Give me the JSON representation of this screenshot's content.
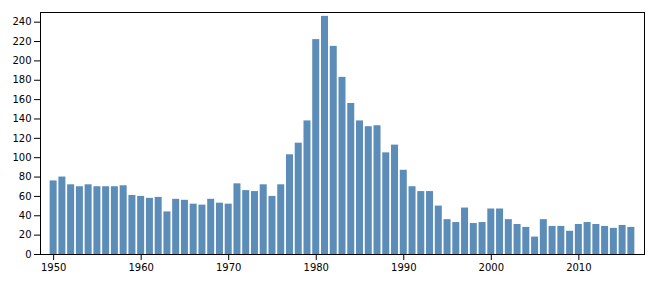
{
  "chart_data": {
    "type": "bar",
    "x": [
      1950,
      1951,
      1952,
      1953,
      1954,
      1955,
      1956,
      1957,
      1958,
      1959,
      1960,
      1961,
      1962,
      1963,
      1964,
      1965,
      1966,
      1967,
      1968,
      1969,
      1970,
      1971,
      1972,
      1973,
      1974,
      1975,
      1976,
      1977,
      1978,
      1979,
      1980,
      1981,
      1982,
      1983,
      1984,
      1985,
      1986,
      1987,
      1988,
      1989,
      1990,
      1991,
      1992,
      1993,
      1994,
      1995,
      1996,
      1997,
      1998,
      1999,
      2000,
      2001,
      2002,
      2003,
      2004,
      2005,
      2006,
      2007,
      2008,
      2009,
      2010,
      2011,
      2012,
      2013,
      2014,
      2015,
      2016
    ],
    "values": [
      76,
      80,
      72,
      70,
      72,
      70,
      70,
      70,
      71,
      61,
      60,
      58,
      59,
      44,
      57,
      56,
      52,
      51,
      57,
      53,
      52,
      73,
      66,
      65,
      72,
      60,
      72,
      103,
      115,
      138,
      222,
      246,
      215,
      183,
      156,
      138,
      132,
      133,
      105,
      113,
      87,
      70,
      65,
      65,
      50,
      36,
      33,
      48,
      32,
      33,
      47,
      47,
      36,
      31,
      28,
      18,
      36,
      29,
      29,
      24,
      31,
      33,
      31,
      29,
      27,
      30,
      28
    ],
    "color": "#5b8db8",
    "xlim": [
      1948.5,
      2017.5
    ],
    "xticks": [
      1950,
      1960,
      1970,
      1980,
      1990,
      2000,
      2010
    ],
    "ylim": [
      0,
      250
    ],
    "yticks": [
      0,
      20,
      40,
      60,
      80,
      100,
      120,
      140,
      160,
      180,
      200,
      220,
      240
    ],
    "grid": false
  }
}
